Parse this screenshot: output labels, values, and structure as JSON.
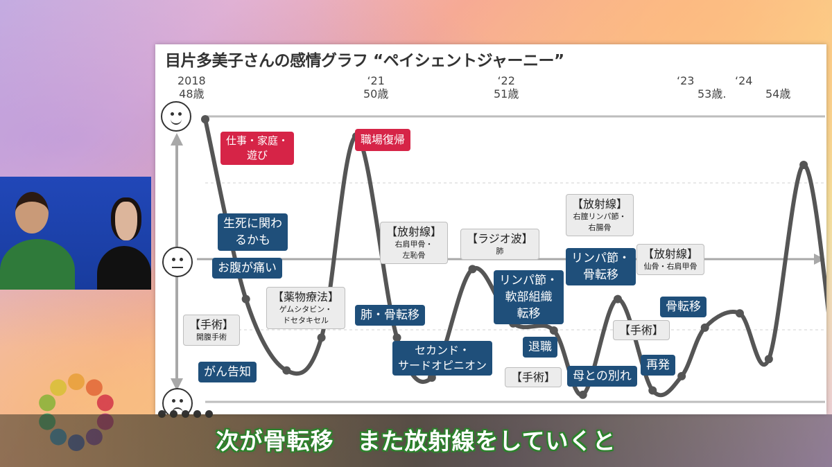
{
  "slide": {
    "title": "目片多美子さんの感情グラフ “ペイシェントジャーニー”"
  },
  "time_axis": [
    {
      "year": "2018",
      "age": "48歳"
    },
    {
      "year": "‘21",
      "age": "50歳"
    },
    {
      "year": "‘22",
      "age": "51歳"
    },
    {
      "year": "‘23",
      "age": "53歳."
    },
    {
      "year": "‘24",
      "age": "54歳"
    }
  ],
  "faces": [
    "smile-face-icon",
    "neutral-face-icon",
    "crying-face-icon"
  ],
  "callouts": {
    "work_family": "仕事・家庭・\n遊び",
    "return_work": "職場復帰",
    "life_death": "生死に関わ\nるかも",
    "stomach": "お腹が痛い",
    "surgery1_title": "【手術】",
    "surgery1_detail": "開腹手術",
    "cancer": "がん告知",
    "drug_title": "【薬物療法】",
    "drug_detail": "ゲムシタビン・\nドセタキセル",
    "lung_meta": "肺・骨転移",
    "radiation1_title": "【放射線】",
    "radiation1_detail": "右肩甲骨・\n左恥骨",
    "rfa_title": "【ラジオ波】",
    "rfa_detail": "肺",
    "second_opinion": "セカンド・\nサードオピニオン",
    "lymph_soft": "リンパ節・\n軟部組織\n転移",
    "retire": "退職",
    "surgery2": "【手術】",
    "radiation2_title": "【放射線】",
    "radiation2_detail": "右腟リンパ節・\n右腸骨",
    "lymph_bone": "リンパ節・\n骨転移",
    "mother": "母との別れ",
    "radiation3_title": "【放射線】",
    "radiation3_detail": "仙骨・右肩甲骨",
    "bone_meta": "骨転移",
    "surgery3": "【手術】",
    "recurrence": "再発"
  },
  "chart_data": {
    "type": "line",
    "title": "目片多美子さんの感情グラフ “ペイシェントジャーニー”",
    "xlabel": "",
    "ylabel": "",
    "x_ticks": [
      "2018 48歳",
      "‘21 50歳",
      "‘22 51歳",
      "‘23 53歳.",
      "‘24 54歳"
    ],
    "ylim": [
      -1,
      1
    ],
    "series": [
      {
        "points": [
          {
            "t": 0.0,
            "y": 0.98
          },
          {
            "t": 0.07,
            "y": -0.28
          },
          {
            "t": 0.14,
            "y": -0.78
          },
          {
            "t": 0.2,
            "y": -0.55
          },
          {
            "t": 0.26,
            "y": 0.86
          },
          {
            "t": 0.33,
            "y": -0.55
          },
          {
            "t": 0.39,
            "y": -0.83
          },
          {
            "t": 0.46,
            "y": -0.07
          },
          {
            "t": 0.53,
            "y": -0.45
          },
          {
            "t": 0.6,
            "y": -0.5
          },
          {
            "t": 0.65,
            "y": -0.95
          },
          {
            "t": 0.71,
            "y": -0.28
          },
          {
            "t": 0.77,
            "y": -0.92
          },
          {
            "t": 0.82,
            "y": -0.82
          },
          {
            "t": 0.86,
            "y": -0.48
          },
          {
            "t": 0.92,
            "y": -0.38
          },
          {
            "t": 0.97,
            "y": -0.7
          },
          {
            "t": 1.03,
            "y": 0.66
          },
          {
            "t": 1.08,
            "y": -0.61
          }
        ]
      }
    ]
  },
  "subtitle": "次が骨転移　また放射線をしていくと"
}
